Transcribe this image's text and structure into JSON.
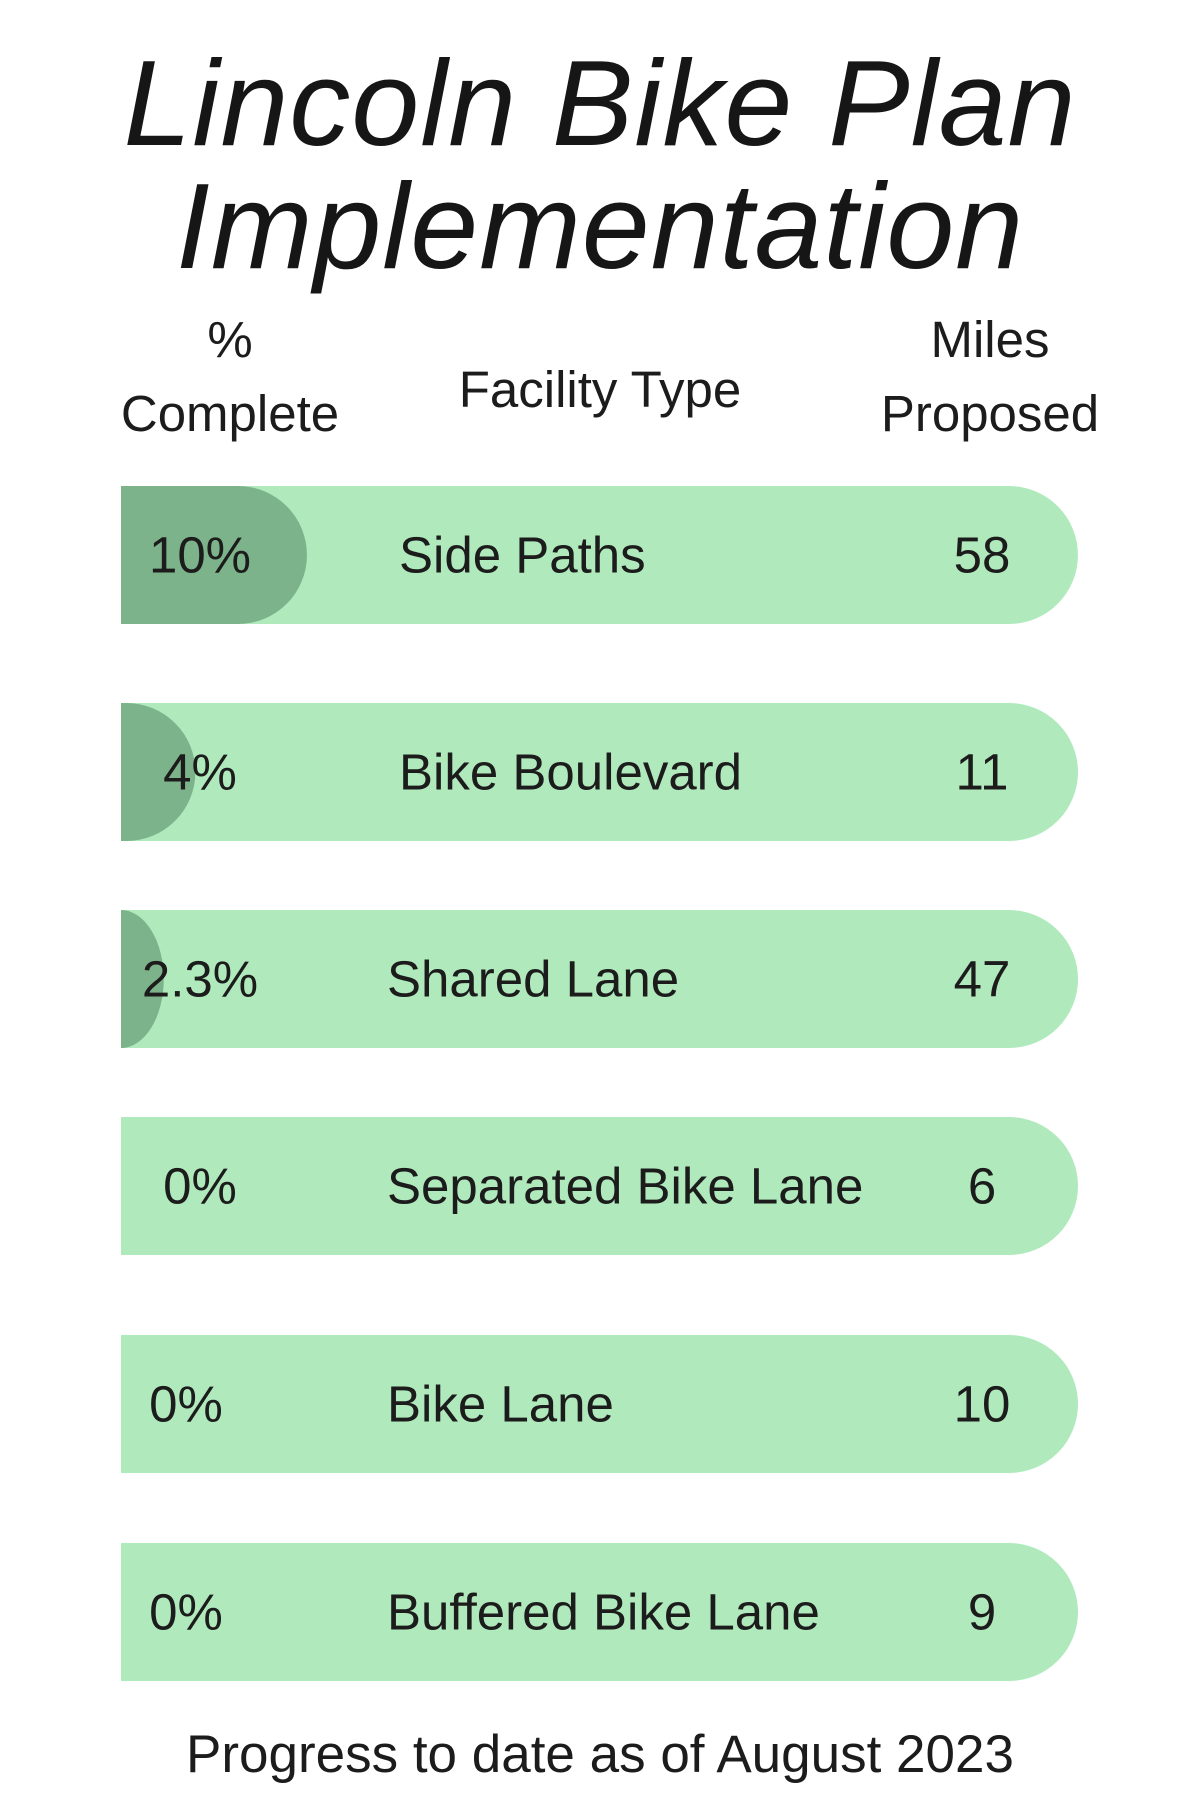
{
  "chart_data": {
    "type": "bar",
    "title": "Lincoln Bike Plan Implementation",
    "title_lines": [
      "Lincoln Bike Plan",
      "Implementation"
    ],
    "columns": {
      "percent_line1": "%",
      "percent_line2": "Complete",
      "facility": "Facility Type",
      "miles_line1": "Miles",
      "miles_line2": "Proposed"
    },
    "categories": [
      "Side Paths",
      "Bike Boulevard",
      "Shared Lane",
      "Separated Bike Lane",
      "Bike Lane",
      "Buffered Bike Lane"
    ],
    "percent_complete": [
      10,
      4,
      2.3,
      0,
      0,
      0
    ],
    "percent_labels": [
      "10%",
      "4%",
      "2.3%",
      "0%",
      "0%",
      "0%"
    ],
    "miles_proposed": [
      58,
      11,
      47,
      6,
      10,
      9
    ],
    "miles_labels": [
      "58",
      "11",
      "47",
      "6",
      "10",
      "9"
    ],
    "footnote": "Progress to date as of August 2023",
    "colors": {
      "bar_background": "#b0eabc",
      "bar_complete": "#7db38a",
      "text": "#1c1c1c"
    }
  }
}
